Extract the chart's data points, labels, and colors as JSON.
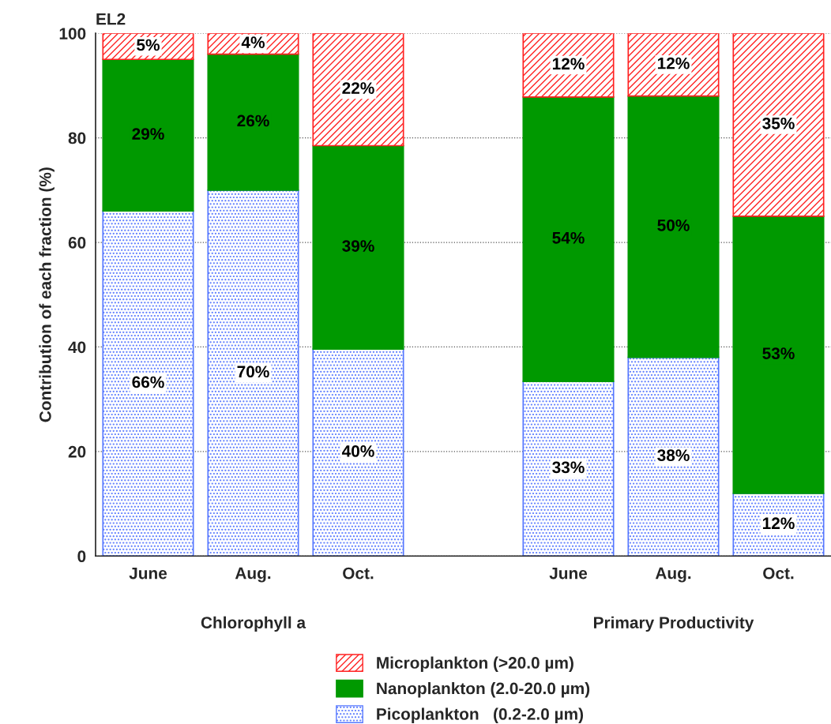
{
  "chart_data": {
    "type": "bar",
    "stacked": true,
    "title": "EL2",
    "ylabel": "Contribution of each fraction (%)",
    "categories": [
      "June",
      "Aug.",
      "Oct.",
      null,
      "June",
      "Aug.",
      "Oct."
    ],
    "series": [
      {
        "name": "Picoplankton   (0.2-2.0 µm)",
        "color": "#5577ff",
        "values": [
          66,
          70,
          39.6,
          null,
          33.4,
          38,
          12
        ],
        "value_labels": [
          "66%",
          "70%",
          "40%",
          null,
          "33%",
          "38%",
          "12%"
        ]
      },
      {
        "name": "Nanoplankton (2.0-20.0 µm)",
        "color": "#009900",
        "values": [
          29,
          26,
          38.9,
          null,
          54.4,
          50,
          53
        ],
        "value_labels": [
          "29%",
          "26%",
          "39%",
          null,
          "54%",
          "50%",
          "53%"
        ]
      },
      {
        "name": "Microplankton (>20.0 µm)",
        "color": "#ff2222",
        "values": [
          5,
          4,
          21.5,
          null,
          12.2,
          12,
          35
        ],
        "value_labels": [
          "5%",
          "4%",
          "22%",
          null,
          "12%",
          "12%",
          "35%"
        ]
      }
    ],
    "annotations": [
      "Chlorophyll a",
      "Primary Productivity"
    ],
    "ylim": [
      0,
      100
    ],
    "yticks": [
      0,
      20,
      40,
      60,
      80,
      100
    ],
    "grid": "y",
    "legend": "bottom"
  }
}
